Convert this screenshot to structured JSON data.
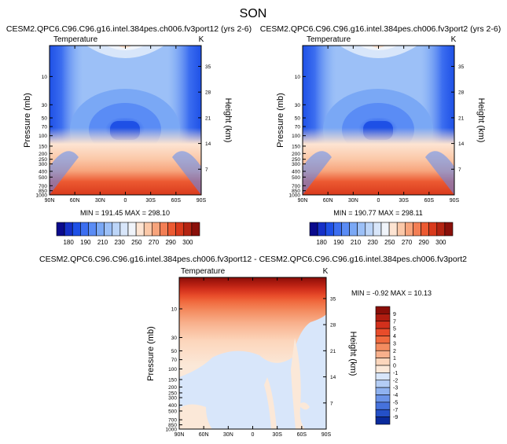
{
  "page_title": "SON",
  "chart_data": [
    {
      "type": "heatmap",
      "title": "CESM2.QPC6.C96.C96.g16.intel.384pes.ch006.fv3port12 (yrs 2-6)",
      "variable_label": "Temperature",
      "units_label": "K",
      "ylabel": "Pressure (mb)",
      "ylabel_right": "Height (km)",
      "x_tick_labels": [
        "90N",
        "60N",
        "30N",
        "0",
        "30S",
        "60S",
        "90S"
      ],
      "p_tick_labels": [
        "10",
        "30",
        "50",
        "70",
        "100",
        "150",
        "200",
        "250",
        "300",
        "400",
        "500",
        "700",
        "850",
        "1000"
      ],
      "p_tick_values": [
        10,
        30,
        50,
        70,
        100,
        150,
        200,
        250,
        300,
        400,
        500,
        700,
        850,
        1000
      ],
      "height_tick_labels": [
        "35",
        "28",
        "21",
        "14",
        "7"
      ],
      "height_tick_values": [
        35,
        28,
        21,
        14,
        7
      ],
      "min_max_label": "MIN = 191.45   MAX = 298.10",
      "min": 191.45,
      "max": 298.1,
      "colorbar_tick_labels": [
        "180",
        "190",
        "210",
        "230",
        "250",
        "270",
        "290",
        "300"
      ],
      "colorbar_colors": [
        "#0a0a8c",
        "#1530c8",
        "#1e50e6",
        "#3c6ef0",
        "#5a8cf5",
        "#7aa8f5",
        "#9cc0f7",
        "#bcd5f8",
        "#d8e6fa",
        "#f0f4fa",
        "#fde4d2",
        "#fbc8a8",
        "#f7a47c",
        "#f37f55",
        "#ec5a32",
        "#d93a1c",
        "#b42412",
        "#8a100a"
      ]
    },
    {
      "type": "heatmap",
      "title": "CESM2.QPC6.C96.C96.g16.intel.384pes.ch006.fv3port2 (yrs 2-6)",
      "variable_label": "Temperature",
      "units_label": "K",
      "ylabel": "Pressure (mb)",
      "ylabel_right": "Height (km)",
      "x_tick_labels": [
        "90N",
        "60N",
        "30N",
        "0",
        "30S",
        "60S",
        "90S"
      ],
      "p_tick_labels": [
        "10",
        "30",
        "50",
        "70",
        "100",
        "150",
        "200",
        "250",
        "300",
        "400",
        "500",
        "700",
        "850",
        "1000"
      ],
      "p_tick_values": [
        10,
        30,
        50,
        70,
        100,
        150,
        200,
        250,
        300,
        400,
        500,
        700,
        850,
        1000
      ],
      "height_tick_labels": [
        "35",
        "28",
        "21",
        "14",
        "7"
      ],
      "height_tick_values": [
        35,
        28,
        21,
        14,
        7
      ],
      "min_max_label": "MIN = 190.77   MAX = 298.11",
      "min": 190.77,
      "max": 298.11,
      "colorbar_tick_labels": [
        "180",
        "190",
        "210",
        "230",
        "250",
        "270",
        "290",
        "300"
      ],
      "colorbar_colors": [
        "#0a0a8c",
        "#1530c8",
        "#1e50e6",
        "#3c6ef0",
        "#5a8cf5",
        "#7aa8f5",
        "#9cc0f7",
        "#bcd5f8",
        "#d8e6fa",
        "#f0f4fa",
        "#fde4d2",
        "#fbc8a8",
        "#f7a47c",
        "#f37f55",
        "#ec5a32",
        "#d93a1c",
        "#b42412",
        "#8a100a"
      ]
    },
    {
      "type": "heatmap",
      "title": "CESM2.QPC6.C96.C96.g16.intel.384pes.ch006.fv3port12 - CESM2.QPC6.C96.C96.g16.intel.384pes.ch006.fv3port2",
      "variable_label": "Temperature",
      "units_label": "K",
      "ylabel": "Pressure (mb)",
      "ylabel_right": "Height (km)",
      "x_tick_labels": [
        "90N",
        "60N",
        "30N",
        "0",
        "30S",
        "60S",
        "90S"
      ],
      "p_tick_labels": [
        "10",
        "30",
        "50",
        "70",
        "100",
        "150",
        "200",
        "250",
        "300",
        "400",
        "500",
        "700",
        "850",
        "1000"
      ],
      "p_tick_values": [
        10,
        30,
        50,
        70,
        100,
        150,
        200,
        250,
        300,
        400,
        500,
        700,
        850,
        1000
      ],
      "height_tick_labels": [
        "35",
        "28",
        "21",
        "14",
        "7"
      ],
      "height_tick_values": [
        35,
        28,
        21,
        14,
        7
      ],
      "min_max_label": "MIN = -0.92   MAX = 10.13",
      "min": -0.92,
      "max": 10.13,
      "colorbar_tick_labels": [
        "9",
        "7",
        "5",
        "4",
        "3",
        "2",
        "1",
        "0",
        "-1",
        "-2",
        "-3",
        "-4",
        "-5",
        "-7",
        "-9"
      ],
      "colorbar_colors": [
        "#8a0e08",
        "#b01c10",
        "#d2301c",
        "#e84c2a",
        "#f06a3e",
        "#f48c60",
        "#f8b08c",
        "#fcd6bc",
        "#fbe8d8",
        "#d8e6fa",
        "#b4cdf5",
        "#8fb2f0",
        "#6a93e8",
        "#4672dc",
        "#2450c8",
        "#0a2a9c"
      ]
    }
  ]
}
